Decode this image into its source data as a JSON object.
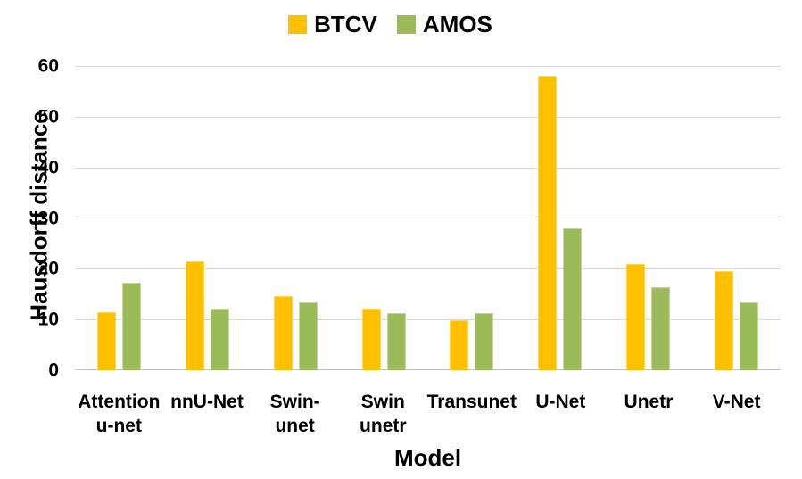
{
  "chart_data": {
    "type": "bar",
    "title": "",
    "xlabel": "Model",
    "ylabel": "Hausdorff distance",
    "ylim": [
      0,
      60
    ],
    "yticks": [
      0,
      10,
      20,
      30,
      40,
      50,
      60
    ],
    "grid": true,
    "legend_position": "top",
    "categories": [
      "Attention\nu-net",
      "nnU-Net",
      "Swin-unet",
      "Swin\nunetr",
      "Transunet",
      "U-Net",
      "Unetr",
      "V-Net"
    ],
    "series": [
      {
        "name": "BTCV",
        "color": "#FFC000",
        "values": [
          11.5,
          21.4,
          14.6,
          12.1,
          9.8,
          58,
          21,
          19.5
        ]
      },
      {
        "name": "AMOS",
        "color": "#9BBB59",
        "values": [
          17.2,
          12.2,
          13.4,
          11.3,
          11.3,
          28,
          16.3,
          13.3
        ]
      }
    ]
  },
  "colors": {
    "btcv": "#FFC000",
    "amos": "#9BBB59",
    "gridline": "#D9D9D9",
    "axis_line": "#C0C0C0",
    "text": "#000000"
  }
}
